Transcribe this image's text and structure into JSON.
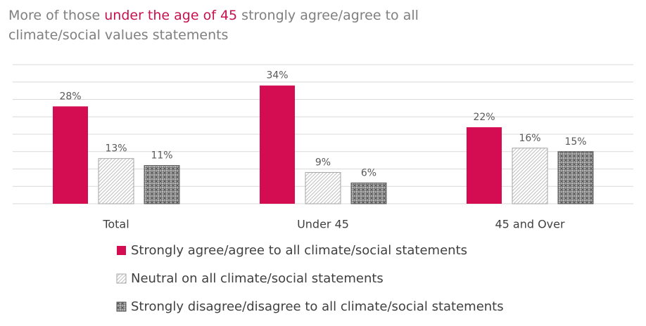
{
  "chart_data": {
    "type": "bar",
    "title": [
      {
        "text": "More of those ",
        "color": "#7f7f7f"
      },
      {
        "text": "under the age of 45",
        "color": "#c8104f"
      },
      {
        "text": " strongly agree/agree to all climate/social values statements",
        "color": "#7f7f7f"
      }
    ],
    "categories": [
      "Total",
      "Under 45",
      "45 and Over"
    ],
    "series": [
      {
        "name": "Strongly agree/agree to all climate/social statements",
        "color": "#d40d52",
        "pattern": "solid",
        "values": [
          28,
          34,
          22
        ],
        "value_labels": [
          "28%",
          "34%",
          "22%"
        ]
      },
      {
        "name": "Neutral on all climate/social statements",
        "color": "#bfbfbf",
        "pattern": "diagonal",
        "values": [
          13,
          9,
          16
        ],
        "value_labels": [
          "13%",
          "9%",
          "16%"
        ]
      },
      {
        "name": "Strongly disagree/disagree to all climate/social statements",
        "color": "#7f7f7f",
        "pattern": "crosshatch",
        "values": [
          11,
          6,
          15
        ],
        "value_labels": [
          "11%",
          "6%",
          "15%"
        ]
      }
    ],
    "ylim": [
      0,
      40
    ],
    "yticks": [
      0,
      5,
      10,
      15,
      20,
      25,
      30,
      35,
      40
    ],
    "grid": true
  }
}
